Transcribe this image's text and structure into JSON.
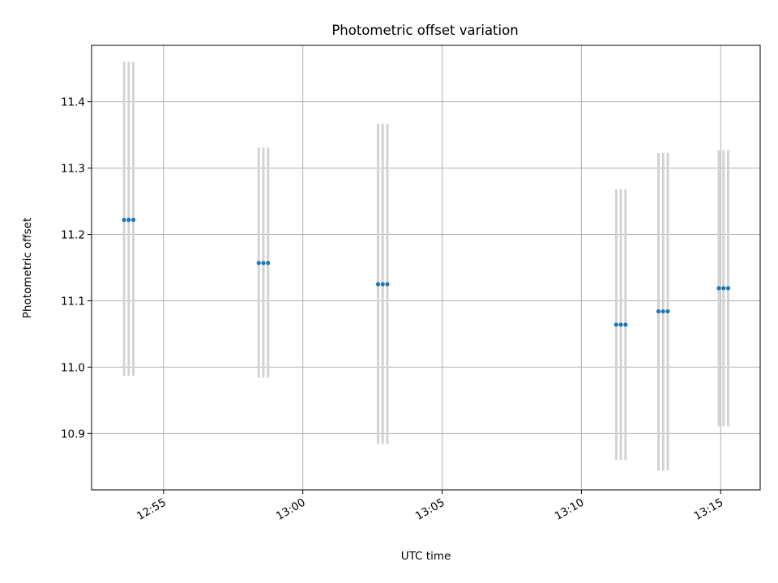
{
  "chart_data": {
    "type": "scatter",
    "title": "Photometric offset variation",
    "xlabel": "UTC time",
    "ylabel": "Photometric offset",
    "grid": true,
    "legend": "none",
    "x_tick_labels": [
      "12:55",
      "13:00",
      "13:05",
      "13:10",
      "13:15"
    ],
    "y_tick_labels": [
      "10.9",
      "11.0",
      "11.1",
      "11.2",
      "11.3",
      "11.4"
    ],
    "y_ticks": [
      10.9,
      11.0,
      11.1,
      11.2,
      11.3,
      11.4
    ],
    "xlim": [
      "12:52:25",
      "13:16:25"
    ],
    "ylim": [
      10.815,
      11.485
    ],
    "colors": {
      "point": "#1f77b4",
      "errorbar": "#d3d3d3",
      "grid": "#b0b0b0"
    },
    "groups": [
      {
        "times": [
          "12:53:35",
          "12:53:45",
          "12:53:55"
        ],
        "y": 11.222,
        "err_low": 10.987,
        "err_high": 11.46
      },
      {
        "times": [
          "12:58:25",
          "12:58:35",
          "12:58:45"
        ],
        "y": 11.157,
        "err_low": 10.984,
        "err_high": 11.331
      },
      {
        "times": [
          "13:02:42",
          "13:02:52",
          "13:03:02"
        ],
        "y": 11.125,
        "err_low": 10.884,
        "err_high": 11.367
      },
      {
        "times": [
          "13:11:15",
          "13:11:25",
          "13:11:35"
        ],
        "y": 11.064,
        "err_low": 10.86,
        "err_high": 11.268
      },
      {
        "times": [
          "13:12:46",
          "13:12:56",
          "13:13:06"
        ],
        "y": 11.084,
        "err_low": 10.844,
        "err_high": 11.323
      },
      {
        "times": [
          "13:14:56",
          "13:15:06",
          "13:15:16"
        ],
        "y": 11.119,
        "err_low": 10.911,
        "err_high": 11.327
      }
    ]
  }
}
